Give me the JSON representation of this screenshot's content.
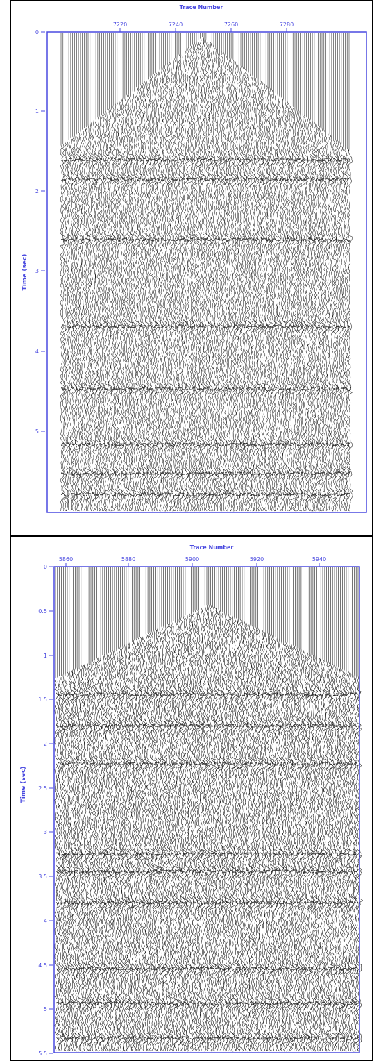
{
  "panels": [
    {
      "trace_axis_title": "Trace Number",
      "time_axis_title": "Time (sec)",
      "trace_ticks": [
        "7220",
        "7240",
        "7260",
        "7280"
      ],
      "time_ticks": [
        "0",
        "1",
        "2",
        "3",
        "4",
        "5"
      ]
    },
    {
      "trace_axis_title": "Trace Number",
      "time_axis_title": "Time (sec)",
      "trace_ticks": [
        "5860",
        "5880",
        "5900",
        "5920",
        "5940"
      ],
      "time_ticks": [
        "0",
        "0.5",
        "1",
        "1.5",
        "2",
        "2.5",
        "3",
        "3.5",
        "4",
        "4.5",
        "5",
        "5.5"
      ]
    }
  ],
  "colors": {
    "axis": "#4a4ae0",
    "trace": "#1a1a1a",
    "frame": "#000000"
  }
}
